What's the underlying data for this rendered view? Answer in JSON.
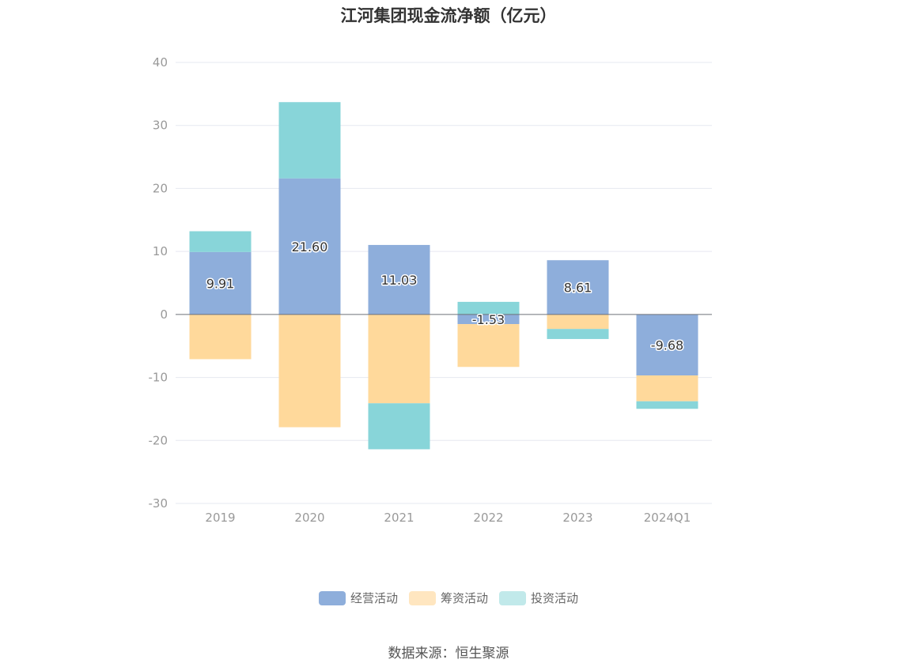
{
  "chart_data": {
    "type": "bar",
    "stacked": true,
    "title": "江河集团现金流净额（亿元）",
    "categories": [
      "2019",
      "2020",
      "2021",
      "2022",
      "2023",
      "2024Q1"
    ],
    "series": [
      {
        "name": "经营活动",
        "color": "#8eaedb",
        "values": [
          9.91,
          21.6,
          11.03,
          -1.53,
          8.61,
          -9.68
        ]
      },
      {
        "name": "筹资活动",
        "color": "#ffd99b",
        "values": [
          -7.1,
          -17.9,
          -14.1,
          -6.8,
          -2.3,
          -4.1
        ]
      },
      {
        "name": "投资活动",
        "color": "#88d5d9",
        "values": [
          3.3,
          12.1,
          -7.3,
          2.0,
          -1.6,
          -1.2
        ]
      }
    ],
    "data_labels": [
      "9.91",
      "21.60",
      "11.03",
      "-1.53",
      "8.61",
      "-9.68"
    ],
    "ylim": [
      -30,
      40
    ],
    "yticks": [
      40,
      30,
      20,
      10,
      0,
      -10,
      -20,
      -30
    ],
    "legend_swatch_colors": [
      "#8eaedb",
      "#ffe6c0",
      "#c1e9ea"
    ],
    "legend_position": "bottom-center",
    "grid": true,
    "xlabel": "",
    "ylabel": ""
  },
  "footer": {
    "source": "数据来源：恒生聚源"
  }
}
